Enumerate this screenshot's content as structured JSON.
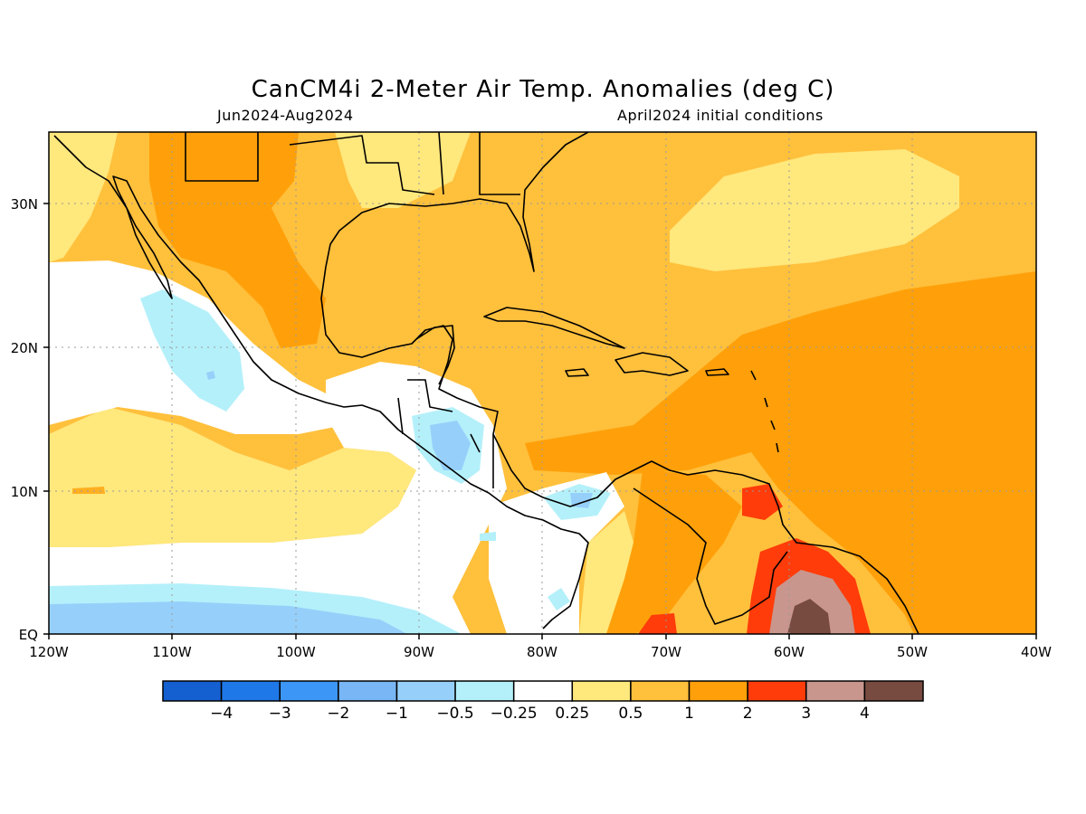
{
  "title": "CanCM4i 2-Meter Air Temp. Anomalies (deg C)",
  "subtitle_left": "Jun2024-Aug2024",
  "subtitle_right": "April2024 initial conditions",
  "map": {
    "lon_range": [
      -120,
      -40
    ],
    "lat_range": [
      0,
      35
    ],
    "x_ticks": [
      "120W",
      "110W",
      "100W",
      "90W",
      "80W",
      "70W",
      "60W",
      "50W",
      "40W"
    ],
    "y_ticks": [
      "EQ",
      "10N",
      "20N",
      "30N"
    ]
  },
  "colorbar": {
    "labels": [
      "-4",
      "-3",
      "-2",
      "-1",
      "-0.5",
      "-0.25",
      "0.25",
      "0.5",
      "1",
      "2",
      "3",
      "4"
    ],
    "colors": [
      "#1560d0",
      "#1f78e8",
      "#3c96f5",
      "#78b6f5",
      "#96d0fa",
      "#b4f0fa",
      "#ffffff",
      "#ffe87c",
      "#ffc03c",
      "#ffa00a",
      "#ff3c0a",
      "#c8968c",
      "#784b41"
    ]
  }
}
